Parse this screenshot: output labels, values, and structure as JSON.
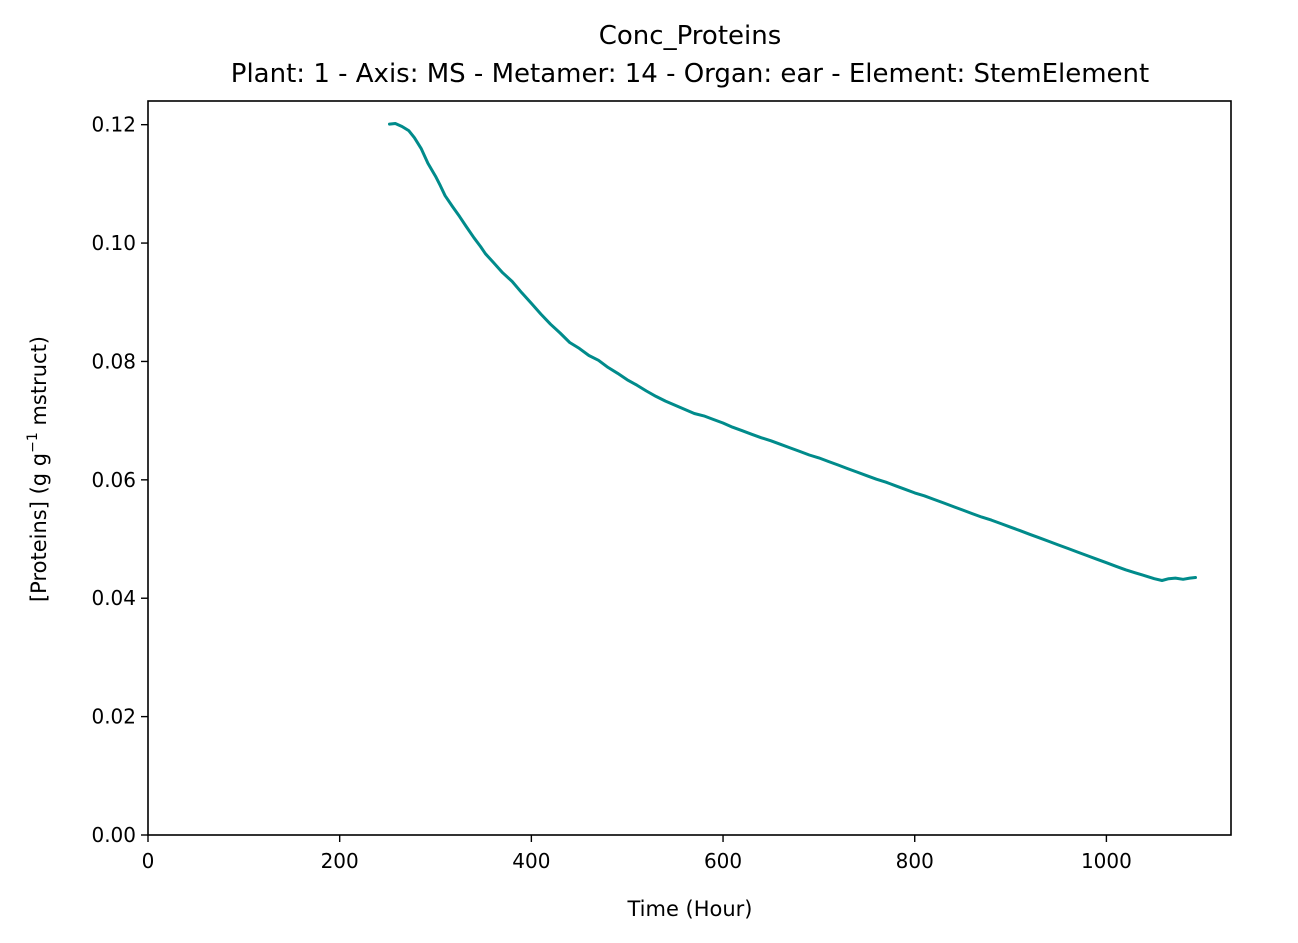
{
  "chart_data": {
    "type": "line",
    "title": "Conc_Proteins",
    "subtitle": "Plant: 1 - Axis: MS - Metamer: 14 - Organ: ear - Element: StemElement",
    "xlabel": "Time (Hour)",
    "ylabel_main": "[Proteins] (g g",
    "ylabel_sup": "−1",
    "ylabel_tail": " mstruct)",
    "xlim": [
      0,
      1130
    ],
    "ylim": [
      0,
      0.124
    ],
    "xticks": [
      0,
      200,
      400,
      600,
      800,
      1000
    ],
    "xtick_labels": [
      "0",
      "200",
      "400",
      "600",
      "800",
      "1000"
    ],
    "yticks": [
      0,
      0.02,
      0.04,
      0.06,
      0.08,
      0.1,
      0.12
    ],
    "ytick_labels": [
      "0.00",
      "0.02",
      "0.04",
      "0.06",
      "0.08",
      "0.10",
      "0.12"
    ],
    "grid": false,
    "series": [
      {
        "color": "#008b8b",
        "x": [
          252,
          258,
          265,
          272,
          278,
          285,
          292,
          300,
          305,
          310,
          318,
          325,
          332,
          340,
          347,
          352,
          360,
          370,
          380,
          390,
          400,
          410,
          420,
          430,
          440,
          450,
          460,
          470,
          480,
          490,
          500,
          510,
          520,
          530,
          540,
          550,
          560,
          570,
          580,
          590,
          600,
          610,
          620,
          630,
          640,
          650,
          660,
          670,
          680,
          690,
          700,
          710,
          720,
          730,
          740,
          750,
          760,
          770,
          780,
          790,
          800,
          810,
          820,
          830,
          840,
          850,
          860,
          870,
          880,
          890,
          900,
          910,
          920,
          930,
          940,
          950,
          960,
          970,
          980,
          990,
          1000,
          1010,
          1020,
          1030,
          1040,
          1050,
          1058,
          1065,
          1072,
          1080,
          1087,
          1093
        ],
        "y": [
          0.1201,
          0.1202,
          0.1197,
          0.119,
          0.1178,
          0.116,
          0.1135,
          0.1113,
          0.1097,
          0.108,
          0.1061,
          0.1045,
          0.1028,
          0.1009,
          0.0994,
          0.0982,
          0.0968,
          0.095,
          0.0935,
          0.0916,
          0.0898,
          0.088,
          0.0863,
          0.0848,
          0.0832,
          0.0822,
          0.081,
          0.0802,
          0.079,
          0.078,
          0.0769,
          0.076,
          0.075,
          0.0741,
          0.0733,
          0.0726,
          0.0719,
          0.0712,
          0.0708,
          0.0702,
          0.0696,
          0.0689,
          0.0683,
          0.0677,
          0.0671,
          0.0666,
          0.066,
          0.0654,
          0.0648,
          0.0642,
          0.0637,
          0.0631,
          0.0625,
          0.0619,
          0.0613,
          0.0607,
          0.0601,
          0.0596,
          0.059,
          0.0584,
          0.0578,
          0.0573,
          0.0567,
          0.0561,
          0.0555,
          0.0549,
          0.0543,
          0.0537,
          0.0532,
          0.0526,
          0.052,
          0.0514,
          0.0508,
          0.0502,
          0.0496,
          0.049,
          0.0484,
          0.0478,
          0.0472,
          0.0466,
          0.046,
          0.0454,
          0.0448,
          0.0443,
          0.0438,
          0.0433,
          0.043,
          0.0433,
          0.0434,
          0.0432,
          0.0434,
          0.0435
        ]
      }
    ]
  }
}
